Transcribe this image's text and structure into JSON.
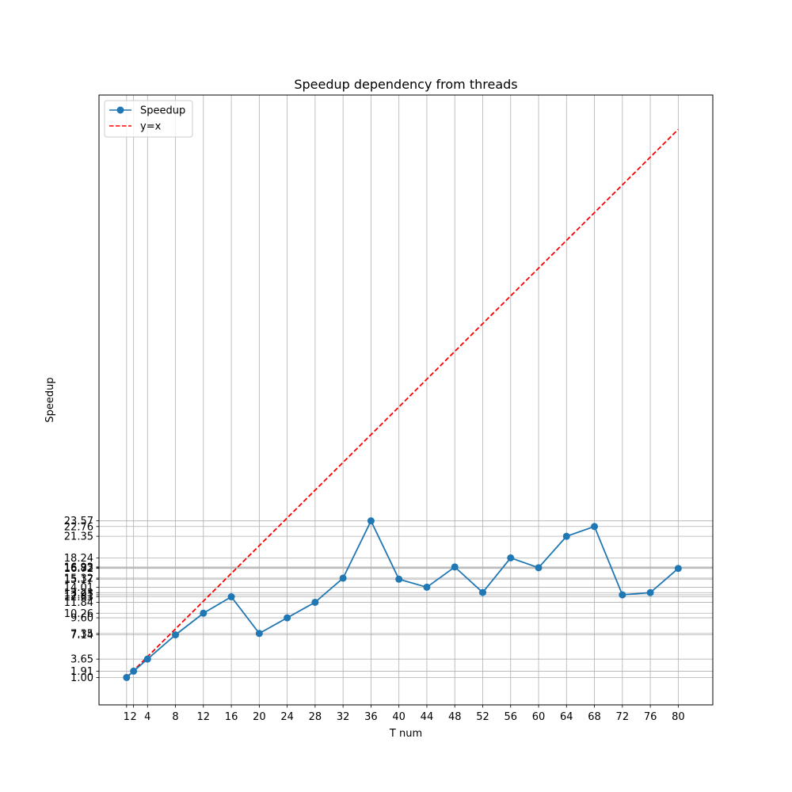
{
  "chart_data": {
    "type": "line",
    "title": "Speedup dependency from threads",
    "xlabel": "T num",
    "ylabel": "Speedup",
    "x": [
      1,
      2,
      4,
      8,
      12,
      16,
      20,
      24,
      28,
      32,
      36,
      40,
      44,
      48,
      52,
      56,
      60,
      64,
      68,
      72,
      76,
      80
    ],
    "x_tick_labels": [
      "1",
      "2",
      "4",
      "8",
      "12",
      "16",
      "20",
      "24",
      "28",
      "32",
      "36",
      "40",
      "44",
      "48",
      "52",
      "56",
      "60",
      "64",
      "68",
      "72",
      "76",
      "80"
    ],
    "series": [
      {
        "name": "Speedup",
        "style": "solid-markers",
        "color": "#1f77b4",
        "values": [
          1.0,
          1.91,
          3.65,
          7.14,
          10.26,
          12.63,
          7.35,
          9.6,
          11.84,
          15.32,
          23.57,
          15.17,
          14.01,
          16.93,
          13.25,
          18.24,
          16.82,
          21.35,
          22.76,
          12.91,
          13.23,
          16.72
        ]
      },
      {
        "name": "y=x",
        "style": "dashed",
        "color": "#ff0000",
        "x": [
          1,
          80
        ],
        "values": [
          1,
          80
        ]
      }
    ],
    "y_tick_values": [
      1.0,
      1.91,
      3.65,
      7.14,
      7.35,
      9.6,
      10.26,
      11.84,
      12.63,
      12.91,
      13.23,
      14.01,
      15.17,
      15.32,
      16.72,
      16.82,
      16.93,
      18.24,
      21.35,
      22.76,
      23.57
    ],
    "y_tick_labels": [
      "1.00",
      "1.91",
      "3.65",
      "7.14",
      "7.35",
      "9.60",
      "10.26",
      "11.84",
      "12.63",
      "12.91",
      "13.23",
      "14.01",
      "15.17",
      "15.32",
      "16.72",
      "16.82",
      "16.93",
      "18.24",
      "21.35",
      "22.76",
      "23.57"
    ],
    "xlim": [
      -2.95,
      84.95
    ],
    "ylim": [
      -2.95,
      84.95
    ],
    "grid": true,
    "legend_position": "upper-left"
  }
}
